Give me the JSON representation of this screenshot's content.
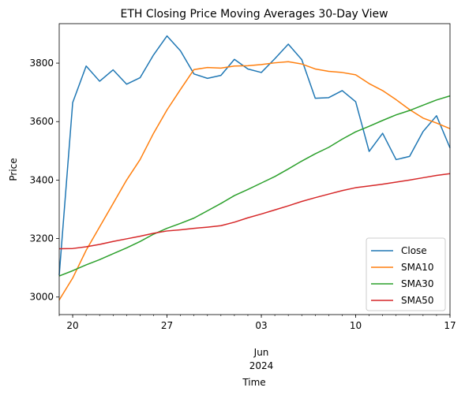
{
  "chart_data": {
    "type": "line",
    "title": "ETH Closing Price Moving Averages 30-Day View",
    "xlabel": "Time",
    "ylabel": "Price",
    "x": [
      "2024-05-19",
      "2024-05-20",
      "2024-05-21",
      "2024-05-22",
      "2024-05-23",
      "2024-05-24",
      "2024-05-25",
      "2024-05-26",
      "2024-05-27",
      "2024-05-28",
      "2024-05-29",
      "2024-05-30",
      "2024-05-31",
      "2024-06-01",
      "2024-06-02",
      "2024-06-03",
      "2024-06-04",
      "2024-06-05",
      "2024-06-06",
      "2024-06-07",
      "2024-06-08",
      "2024-06-09",
      "2024-06-10",
      "2024-06-11",
      "2024-06-12",
      "2024-06-13",
      "2024-06-14",
      "2024-06-15",
      "2024-06-16",
      "2024-06-17"
    ],
    "xlim": [
      "2024-05-19",
      "2024-06-17"
    ],
    "ylim": [
      2940,
      3935
    ],
    "yticks": [
      3000,
      3200,
      3400,
      3600,
      3800
    ],
    "xticks": [
      {
        "date": "2024-05-20",
        "label": "20"
      },
      {
        "date": "2024-05-27",
        "label": "27"
      },
      {
        "date": "2024-06-03",
        "label": "03"
      },
      {
        "date": "2024-06-10",
        "label": "10"
      },
      {
        "date": "2024-06-17",
        "label": "17"
      }
    ],
    "month_label": {
      "date": "2024-06-03",
      "month": "Jun",
      "year": "2024"
    },
    "grid": false,
    "legend_position": "lower-right",
    "series": [
      {
        "name": "Close",
        "color": "#1f77b4",
        "values": [
          3075,
          3665,
          3790,
          3738,
          3777,
          3728,
          3750,
          3828,
          3893,
          3842,
          3763,
          3748,
          3758,
          3813,
          3780,
          3768,
          3815,
          3865,
          3812,
          3680,
          3682,
          3706,
          3668,
          3498,
          3560,
          3470,
          3481,
          3566,
          3620,
          3510
        ]
      },
      {
        "name": "SMA10",
        "color": "#ff7f0e",
        "values": [
          2990,
          3065,
          3160,
          3240,
          3320,
          3400,
          3470,
          3560,
          3640,
          3710,
          3778,
          3785,
          3783,
          3790,
          3791,
          3795,
          3801,
          3805,
          3797,
          3780,
          3772,
          3768,
          3760,
          3730,
          3706,
          3675,
          3641,
          3612,
          3595,
          3576
        ]
      },
      {
        "name": "SMA30",
        "color": "#2ca02c",
        "values": [
          3072,
          3090,
          3110,
          3128,
          3148,
          3168,
          3190,
          3215,
          3235,
          3252,
          3270,
          3295,
          3320,
          3347,
          3368,
          3390,
          3412,
          3438,
          3465,
          3490,
          3512,
          3540,
          3565,
          3584,
          3604,
          3623,
          3638,
          3656,
          3674,
          3688
        ]
      },
      {
        "name": "SMA50",
        "color": "#d62728",
        "values": [
          3165,
          3166,
          3172,
          3180,
          3190,
          3199,
          3208,
          3218,
          3226,
          3230,
          3235,
          3239,
          3244,
          3256,
          3271,
          3284,
          3298,
          3312,
          3327,
          3340,
          3352,
          3364,
          3374,
          3380,
          3386,
          3393,
          3400,
          3408,
          3416,
          3422
        ]
      }
    ]
  }
}
